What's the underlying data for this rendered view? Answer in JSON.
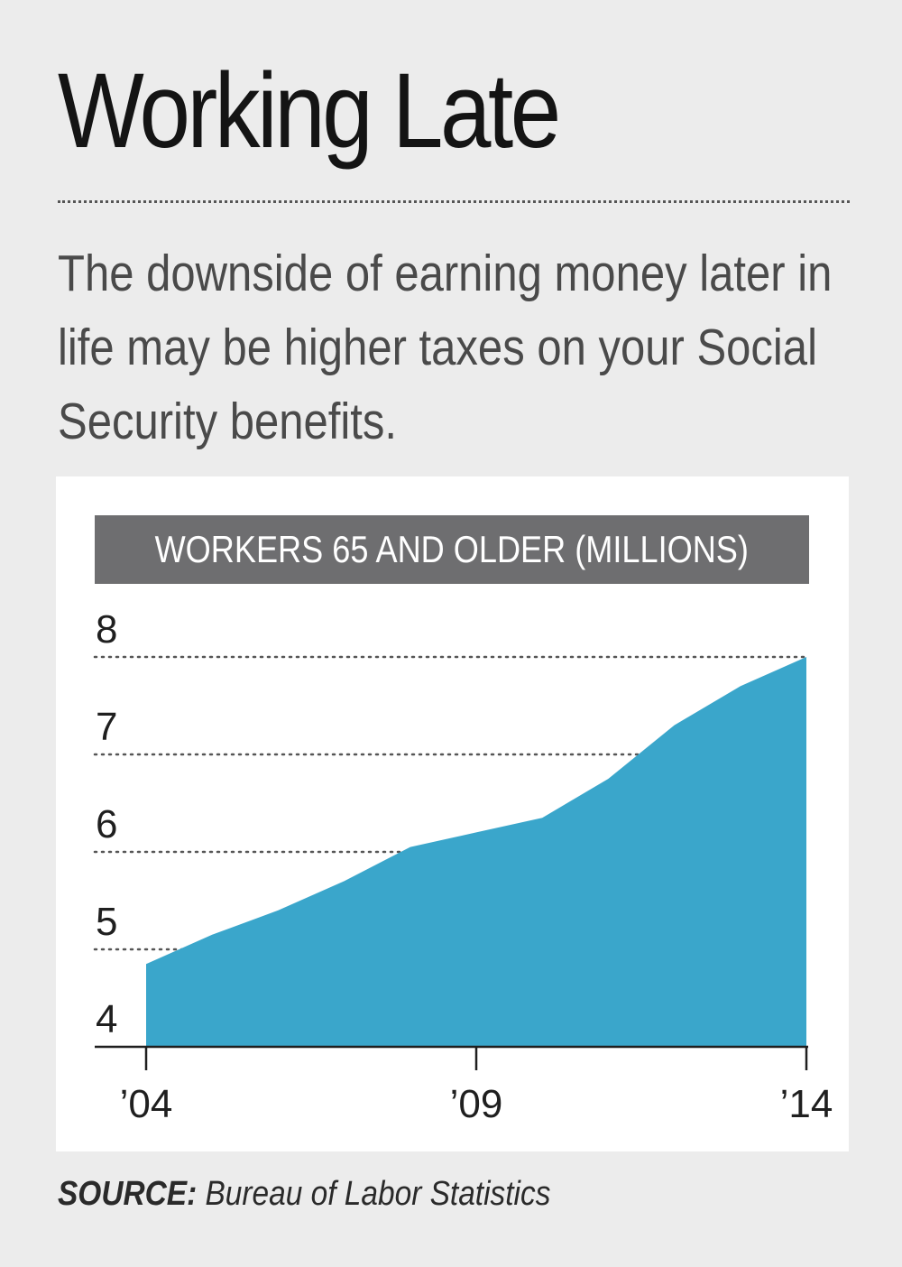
{
  "header": {
    "title": "Working Late",
    "subtitle": "The downside of earning money later in life may be higher taxes on your Social Security benefits."
  },
  "source": {
    "label": "SOURCE:",
    "text": "Bureau of Labor Statistics"
  },
  "colors": {
    "area": "#3aa6cb",
    "header_bar": "#6e6e70",
    "background": "#ececec"
  },
  "chart_data": {
    "type": "area",
    "title": "WORKERS 65 AND OLDER (MILLIONS)",
    "x": [
      2004,
      2005,
      2006,
      2007,
      2008,
      2009,
      2010,
      2011,
      2012,
      2013,
      2014
    ],
    "values": [
      4.85,
      5.15,
      5.4,
      5.7,
      6.05,
      6.2,
      6.35,
      6.75,
      7.3,
      7.7,
      8.0
    ],
    "y_ticks": [
      "4",
      "5",
      "6",
      "7",
      "8"
    ],
    "x_ticks": [
      "’04",
      "’09",
      "’14"
    ],
    "ylim": [
      4,
      8
    ],
    "xlim": [
      2004,
      2014
    ],
    "grid": true,
    "xlabel": "",
    "ylabel": ""
  }
}
